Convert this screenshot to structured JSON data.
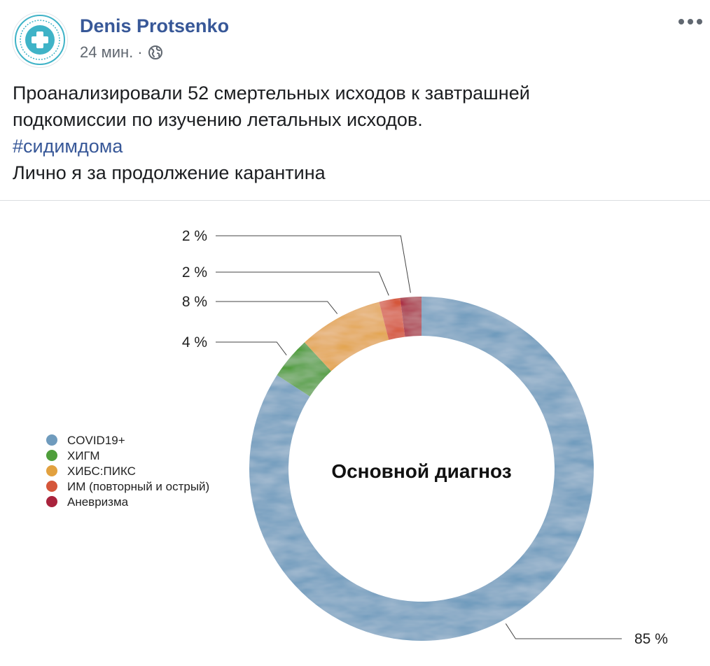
{
  "post": {
    "author": "Denis Protsenko",
    "time": "24 мин.",
    "separator": "·",
    "privacy_icon": "globe-icon",
    "more_icon": "more-options-icon",
    "avatar_icon": "medical-cross-logo",
    "text_lines": [
      "Проанализировали 52 смертельных исходов к завтрашней",
      "подкомиссии по изучению летальных исходов."
    ],
    "hashtag": "#сидимдома",
    "text_last": "Лично я за продолжение карантина"
  },
  "chart_data": {
    "type": "pie",
    "title": "Основной диагноз",
    "categories": [
      "COVID19+",
      "ХИГМ",
      "ХИБС:ПИКС",
      "ИМ (повторный и острый)",
      "Аневризма"
    ],
    "values": [
      85,
      4,
      8,
      2,
      2
    ],
    "labels": [
      "85 %",
      "4 %",
      "8 %",
      "2 %",
      "2 %"
    ],
    "colors": [
      "#6f9bbd",
      "#4f9e3b",
      "#e2a13f",
      "#d5563a",
      "#a9233c"
    ],
    "legend_position": "left"
  }
}
